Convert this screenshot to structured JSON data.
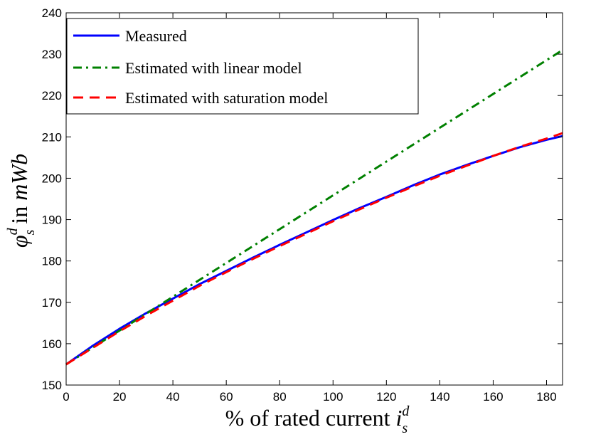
{
  "chart_data": {
    "type": "line",
    "xlabel": {
      "prefix": "% of rated current ",
      "symbol": "i",
      "superscript": "d",
      "subscript": "s"
    },
    "ylabel": {
      "symbol": "φ",
      "superscript": "d",
      "subscript": "s",
      "suffix": " in ",
      "unit": "mWb"
    },
    "xlim": [
      0,
      186
    ],
    "ylim": [
      150,
      240
    ],
    "x_ticks": [
      0,
      20,
      40,
      60,
      80,
      100,
      120,
      140,
      160,
      180
    ],
    "y_ticks": [
      150,
      160,
      170,
      180,
      190,
      200,
      210,
      220,
      230,
      240
    ],
    "grid": false,
    "legend_position": "top-left",
    "series": [
      {
        "name": "Measured",
        "color": "#0000ff",
        "style": "solid",
        "x": [
          0,
          10,
          20,
          30,
          40,
          50,
          60,
          70,
          80,
          90,
          100,
          110,
          120,
          130,
          140,
          150,
          160,
          170,
          180,
          186
        ],
        "y": [
          155.0,
          159.5,
          163.6,
          167.4,
          170.9,
          174.4,
          177.6,
          180.8,
          183.9,
          186.9,
          189.9,
          192.8,
          195.5,
          198.3,
          200.9,
          203.2,
          205.4,
          207.5,
          209.3,
          210.2
        ]
      },
      {
        "name": "Estimated with linear model",
        "color": "#008000",
        "style": "dashdot",
        "x": [
          0,
          186
        ],
        "y": [
          155.0,
          231.0
        ]
      },
      {
        "name": "Estimated with saturation model",
        "color": "#ff0000",
        "style": "dashed",
        "x": [
          0,
          10,
          20,
          30,
          40,
          50,
          60,
          70,
          80,
          90,
          100,
          110,
          120,
          130,
          140,
          150,
          160,
          170,
          180,
          186
        ],
        "y": [
          155.0,
          159.0,
          163.0,
          166.8,
          170.4,
          174.0,
          177.3,
          180.5,
          183.6,
          186.6,
          189.6,
          192.5,
          195.3,
          198.0,
          200.6,
          203.0,
          205.4,
          207.6,
          209.6,
          210.9
        ]
      }
    ]
  }
}
